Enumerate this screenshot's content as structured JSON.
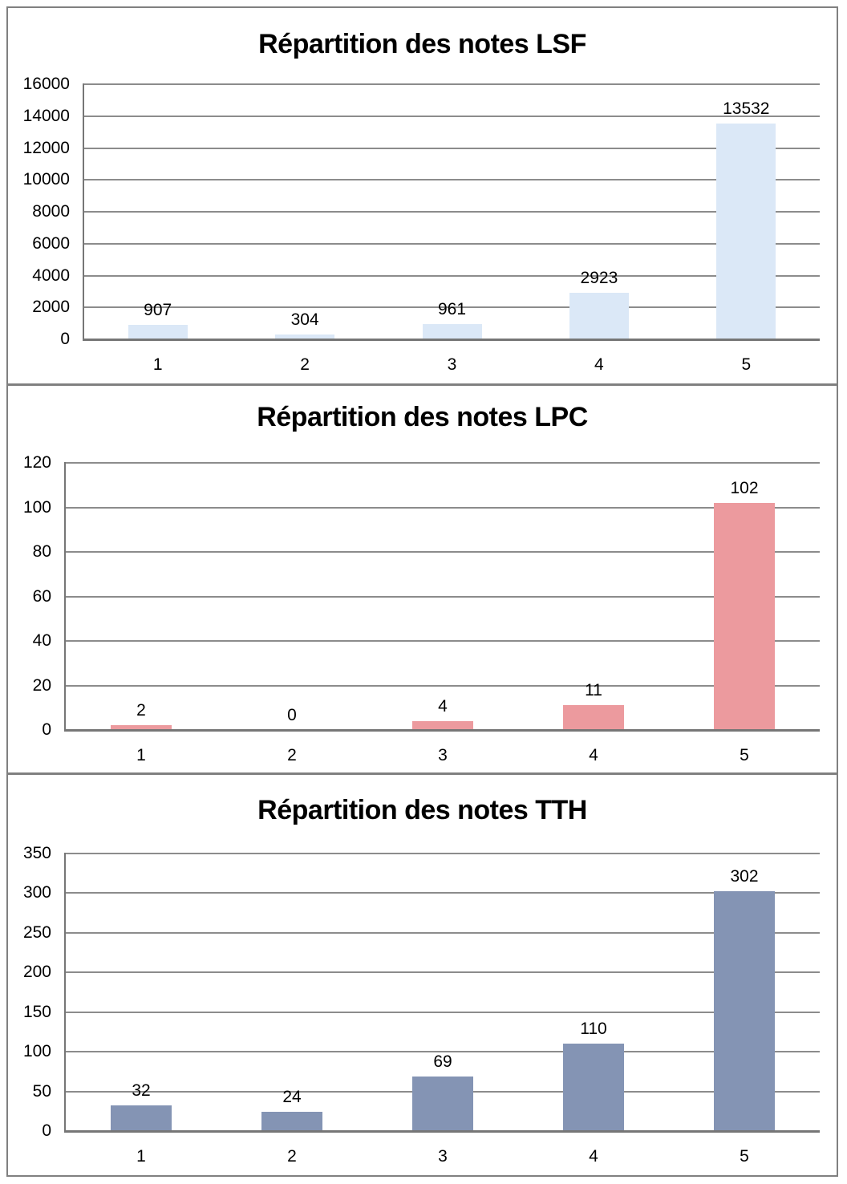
{
  "page": {
    "background": "#ffffff",
    "frame_border_color": "#808080"
  },
  "styles": {
    "gridline_color": "#8c8c8c",
    "axis_color": "#767676",
    "text_color": "#000000",
    "title_color": "#000000"
  },
  "chart_data": [
    {
      "type": "bar",
      "title": "Répartition des notes LSF",
      "categories": [
        "1",
        "2",
        "3",
        "4",
        "5"
      ],
      "values": [
        907,
        304,
        961,
        2923,
        13532
      ],
      "data_labels": [
        "907",
        "304",
        "961",
        "2923",
        "13532"
      ],
      "xlabel": "",
      "ylabel": "",
      "ylim": [
        0,
        16000
      ],
      "ytick_step": 2000,
      "yticks": [
        0,
        2000,
        4000,
        6000,
        8000,
        10000,
        12000,
        14000,
        16000
      ],
      "grid": "on",
      "legend": "none",
      "bar_color": "#dbe8f7"
    },
    {
      "type": "bar",
      "title": "Répartition des notes LPC",
      "categories": [
        "1",
        "2",
        "3",
        "4",
        "5"
      ],
      "values": [
        2,
        0,
        4,
        11,
        102
      ],
      "data_labels": [
        "2",
        "0",
        "4",
        "11",
        "102"
      ],
      "xlabel": "",
      "ylabel": "",
      "ylim": [
        0,
        120
      ],
      "ytick_step": 20,
      "yticks": [
        0,
        20,
        40,
        60,
        80,
        100,
        120
      ],
      "grid": "on",
      "legend": "none",
      "bar_color": "#ec9a9e"
    },
    {
      "type": "bar",
      "title": "Répartition des notes TTH",
      "categories": [
        "1",
        "2",
        "3",
        "4",
        "5"
      ],
      "values": [
        32,
        24,
        69,
        110,
        302
      ],
      "data_labels": [
        "32",
        "24",
        "69",
        "110",
        "302"
      ],
      "xlabel": "",
      "ylabel": "",
      "ylim": [
        0,
        350
      ],
      "ytick_step": 50,
      "yticks": [
        0,
        50,
        100,
        150,
        200,
        250,
        300,
        350
      ],
      "grid": "on",
      "legend": "none",
      "bar_color": "#8494b4"
    }
  ]
}
